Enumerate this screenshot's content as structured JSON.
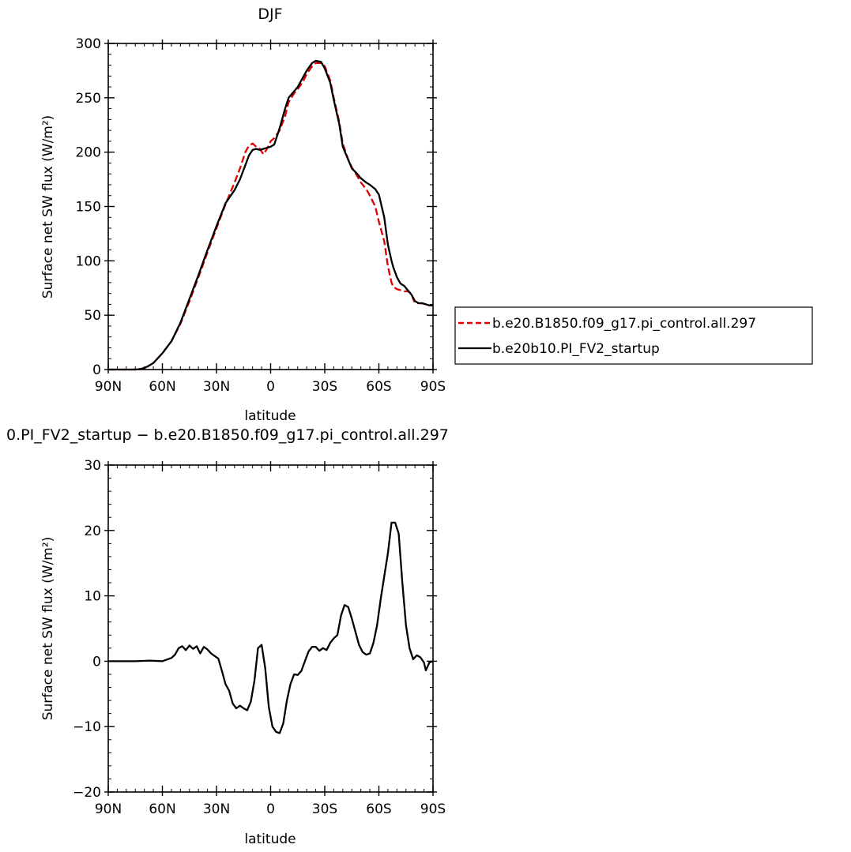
{
  "chart_data": [
    {
      "type": "line",
      "title": "DJF",
      "xlabel": "latitude",
      "ylabel": "Surface net SW flux (W/m²)",
      "xlim": [
        90,
        -90
      ],
      "ylim": [
        0,
        300
      ],
      "x_ticks": [
        {
          "value": 90,
          "label": "90N"
        },
        {
          "value": 60,
          "label": "60N"
        },
        {
          "value": 30,
          "label": "30N"
        },
        {
          "value": 0,
          "label": "0"
        },
        {
          "value": -30,
          "label": "30S"
        },
        {
          "value": -60,
          "label": "60S"
        },
        {
          "value": -90,
          "label": "90S"
        }
      ],
      "y_ticks": [
        0,
        50,
        100,
        150,
        200,
        250,
        300
      ],
      "grid": false,
      "legend_position": "right",
      "series": [
        {
          "name": "b.e20.B1850.f09_g17.pi_control.all.297",
          "color": "#e00000",
          "dash": "dashed",
          "x": [
            90,
            80,
            75,
            72,
            70,
            68,
            65,
            60,
            55,
            50,
            45,
            40,
            35,
            30,
            25,
            20,
            17,
            14,
            12,
            10,
            8,
            6,
            4,
            2,
            0,
            -2,
            -5,
            -8,
            -10,
            -13,
            -15,
            -18,
            -20,
            -23,
            -25,
            -28,
            -30,
            -33,
            -35,
            -38,
            -40,
            -43,
            -45,
            -48,
            -50,
            -53,
            -55,
            -58,
            -60,
            -63,
            -65,
            -67,
            -68,
            -70,
            -72,
            -74,
            -76,
            -78,
            -79,
            -80,
            -82,
            -84,
            -86,
            -88,
            -90
          ],
          "y": [
            0,
            0,
            0,
            0.5,
            1.5,
            3,
            6,
            15,
            26,
            42,
            63,
            85,
            108,
            130,
            152,
            172,
            185,
            200,
            206,
            208,
            205,
            203,
            198,
            203,
            210,
            213,
            220,
            233,
            246,
            254,
            258,
            265,
            272,
            279,
            282,
            282,
            279,
            266,
            250,
            228,
            208,
            193,
            186,
            178,
            172,
            166,
            160,
            150,
            136,
            118,
            95,
            80,
            76,
            74,
            73,
            72,
            72,
            70,
            65,
            61,
            61,
            61,
            60,
            59,
            59
          ]
        },
        {
          "name": "b.e20b10.PI_FV2_startup",
          "color": "#000000",
          "dash": "solid",
          "x": [
            90,
            80,
            75,
            72,
            70,
            68,
            65,
            60,
            55,
            50,
            45,
            40,
            35,
            30,
            25,
            20,
            17,
            14,
            12,
            10,
            8,
            6,
            4,
            2,
            0,
            -2,
            -5,
            -8,
            -10,
            -13,
            -15,
            -18,
            -20,
            -23,
            -25,
            -28,
            -30,
            -33,
            -35,
            -38,
            -40,
            -43,
            -45,
            -48,
            -50,
            -53,
            -55,
            -58,
            -60,
            -63,
            -65,
            -67,
            -68,
            -70,
            -72,
            -74,
            -76,
            -78,
            -79,
            -80,
            -82,
            -84,
            -86,
            -88,
            -90
          ],
          "y": [
            0,
            0,
            0,
            0.5,
            1.5,
            3,
            6,
            15,
            26,
            43,
            65,
            87,
            110,
            132,
            153,
            165,
            175,
            188,
            197,
            202,
            203,
            202,
            203,
            204,
            205,
            207,
            222,
            240,
            250,
            256,
            260,
            269,
            275,
            282,
            284,
            283,
            277,
            264,
            248,
            226,
            205,
            193,
            185,
            180,
            176,
            172,
            170,
            166,
            161,
            140,
            115,
            100,
            94,
            85,
            79,
            77,
            73,
            69,
            66,
            63,
            61,
            61,
            60,
            59,
            59
          ]
        }
      ]
    },
    {
      "type": "line",
      "title": "0.PI_FV2_startup − b.e20.B1850.f09_g17.pi_control.all.297",
      "xlabel": "latitude",
      "ylabel": "Surface net SW flux (W/m²)",
      "xlim": [
        90,
        -90
      ],
      "ylim": [
        -20,
        30
      ],
      "x_ticks": [
        {
          "value": 90,
          "label": "90N"
        },
        {
          "value": 60,
          "label": "60N"
        },
        {
          "value": 30,
          "label": "30N"
        },
        {
          "value": 0,
          "label": "0"
        },
        {
          "value": -30,
          "label": "30S"
        },
        {
          "value": -60,
          "label": "60S"
        },
        {
          "value": -90,
          "label": "90S"
        }
      ],
      "y_ticks": [
        -20,
        -10,
        0,
        10,
        20,
        30
      ],
      "grid": false,
      "series": [
        {
          "color": "#000000",
          "dash": "solid",
          "x": [
            90,
            75,
            67,
            60,
            58,
            55,
            53,
            51,
            49,
            47,
            45,
            43,
            41,
            39,
            37,
            35,
            33,
            31,
            29,
            27,
            25,
            23,
            21,
            19,
            17,
            15,
            13,
            11,
            9,
            7,
            5,
            3,
            1,
            -1,
            -3,
            -5,
            -7,
            -9,
            -11,
            -13,
            -15,
            -17,
            -19,
            -21,
            -23,
            -25,
            -27,
            -29,
            -31,
            -33,
            -35,
            -37,
            -39,
            -41,
            -43,
            -45,
            -47,
            -49,
            -51,
            -53,
            -55,
            -57,
            -59,
            -61,
            -63,
            -65,
            -67,
            -69,
            -71,
            -73,
            -75,
            -77,
            -79,
            -81,
            -83,
            -85,
            -86,
            -88,
            -90
          ],
          "y": [
            0,
            0,
            0.1,
            0,
            0.2,
            0.5,
            1.0,
            2.0,
            2.3,
            1.7,
            2.4,
            1.9,
            2.3,
            1.2,
            2.2,
            1.8,
            1.2,
            0.8,
            0.4,
            -1.5,
            -3.5,
            -4.5,
            -6.5,
            -7.2,
            -6.8,
            -7.2,
            -7.5,
            -6.2,
            -3.0,
            2.0,
            2.5,
            -1.0,
            -7.0,
            -10.0,
            -10.8,
            -11.0,
            -9.5,
            -6.0,
            -3.5,
            -2.0,
            -2.1,
            -1.5,
            0.0,
            1.5,
            2.2,
            2.2,
            1.6,
            2.0,
            1.7,
            2.8,
            3.5,
            4.0,
            7.0,
            8.6,
            8.3,
            6.5,
            4.5,
            2.5,
            1.4,
            1.0,
            1.2,
            2.8,
            5.5,
            9.5,
            13.0,
            16.5,
            21.2,
            21.2,
            19.5,
            12.0,
            5.5,
            2.0,
            0.3,
            0.9,
            0.6,
            -0.2,
            -1.4,
            -0.2,
            0
          ]
        }
      ]
    }
  ]
}
